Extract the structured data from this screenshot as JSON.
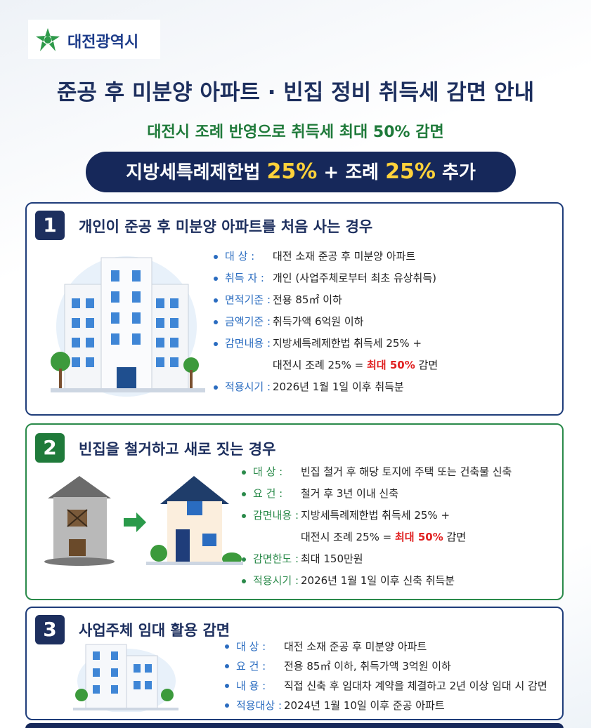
{
  "header": {
    "logo": "대전광역시",
    "title": "준공 후 미분양 아파트 · 빈집 정비 취득세 감면 안내",
    "subtitle": "대전시 조례 반영으로 취득세 최대 50% 감면"
  },
  "banner": {
    "law": "지방세특례제한법",
    "rate1": "25%",
    "plus": "+ 조례",
    "rate2": "25%",
    "suffix": "추가"
  },
  "sections": [
    {
      "number": "1",
      "title": "개인이 준공 후 미분양 아파트를 처음 사는 경우",
      "items": [
        {
          "label": "대 상 :",
          "text": "대전 소재 준공 후 미분양 아파트"
        },
        {
          "label": "취득 자 :",
          "text": "개인 (사업주체로부터 최초 유상취득)"
        },
        {
          "label": "면적기준 :",
          "text": "전용 85㎡ 이하"
        },
        {
          "label": "금액기준 :",
          "text": "취득가액 6억원 이하"
        },
        {
          "label": "감면내용 :",
          "text": "지방세특례제한법  취득세 25% +",
          "line2": "대전시 조례 25% =",
          "highlight": "최대 50%",
          "tail": "감면"
        },
        {
          "label": "적용시기 :",
          "text": "2026년 1월 1일 이후 취득분"
        }
      ]
    },
    {
      "number": "2",
      "title": "빈집을 철거하고 새로 짓는 경우",
      "items": [
        {
          "label": "대 상 :",
          "text": "빈집 철거 후 해당 토지에 주택 또는 건축물 신축"
        },
        {
          "label": "요 건 :",
          "text": "철거 후 3년 이내 신축"
        },
        {
          "label": "감면내용 :",
          "text": "지방세특례제한법  취득세 25% +",
          "line2": "대전시 조례 25% =",
          "highlight": "최대 50%",
          "tail": "감면"
        },
        {
          "label": "감면한도 :",
          "text": "최대 150만원"
        },
        {
          "label": "적용시기 :",
          "text": "2026년 1월 1일 이후 신축 취득분"
        }
      ]
    },
    {
      "number": "3",
      "title": "사업주체 임대 활용 감면",
      "items": [
        {
          "label": "대 상 :",
          "text": "대전 소재 준공 후 미분양 아파트"
        },
        {
          "label": "요 건 :",
          "text": "전용 85㎡ 이하, 취득가액 3억원 이하"
        },
        {
          "label": "내 용 :",
          "text": "직접 신축 후 임대차 계약을 체결하고 2년 이상 임대 시 감면"
        },
        {
          "label": "적용대상 :",
          "text": "2024년 1월 10일 이후 준공 아파트"
        }
      ]
    }
  ]
}
